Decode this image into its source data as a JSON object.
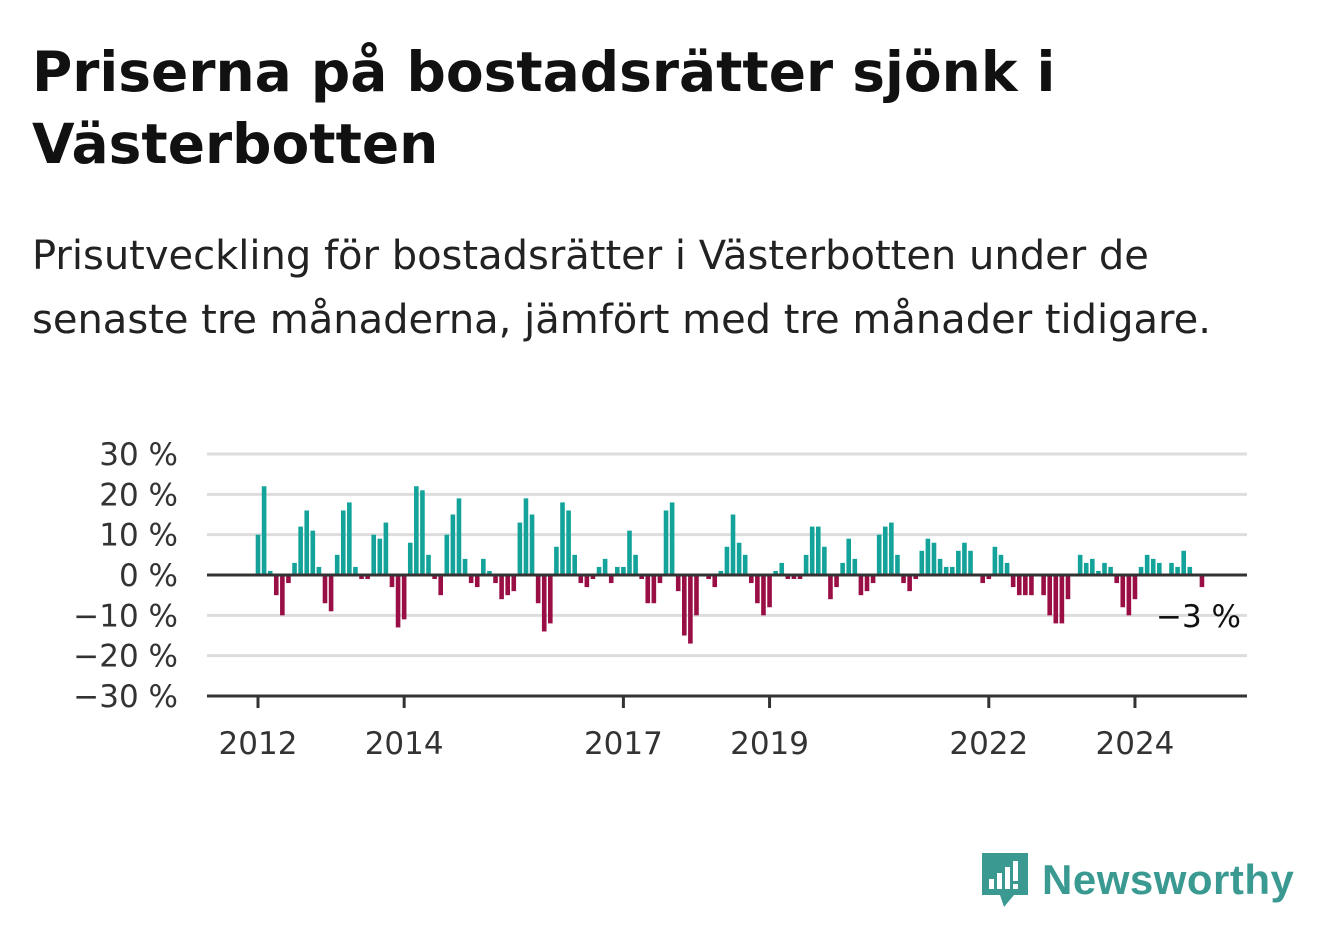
{
  "chart_data": {
    "type": "bar",
    "title": "Priserna på bostadsrätter sjönk i Västerbotten",
    "subtitle": "Prisutveckling för bostadsrätter i Västerbotten under de senaste tre månaderna, jämfört med tre månader tidigare.",
    "xlabel": "",
    "ylabel": "",
    "ylim": [
      -30,
      30
    ],
    "yticks": [
      30,
      20,
      10,
      0,
      -10,
      -20,
      -30
    ],
    "ytick_labels": [
      "30 %",
      "20 %",
      "10 %",
      "0 %",
      "−10 %",
      "−20 %",
      "−30 %"
    ],
    "xticks": [
      "2012",
      "2014",
      "2017",
      "2019",
      "2022",
      "2024"
    ],
    "grid": true,
    "start": "2012-01",
    "x_unit": "month",
    "colors": {
      "positive": "#14a39a",
      "negative": "#990e45",
      "grid": "#dddddd",
      "axis": "#333333"
    },
    "values": [
      10,
      22,
      1,
      -5,
      -10,
      -2,
      3,
      12,
      16,
      11,
      2,
      -7,
      -9,
      5,
      16,
      18,
      2,
      -1,
      -1,
      10,
      9,
      13,
      -3,
      -13,
      -11,
      8,
      22,
      21,
      5,
      -1,
      -5,
      10,
      15,
      19,
      4,
      -2,
      -3,
      4,
      1,
      -2,
      -6,
      -5,
      -4,
      13,
      19,
      15,
      -7,
      -14,
      -12,
      7,
      18,
      16,
      5,
      -2,
      -3,
      -1,
      2,
      4,
      -2,
      2,
      2,
      11,
      5,
      -1,
      -7,
      -7,
      -2,
      16,
      18,
      -4,
      -15,
      -17,
      -10,
      0,
      -1,
      -3,
      1,
      7,
      15,
      8,
      5,
      -2,
      -7,
      -10,
      -8,
      1,
      3,
      -1,
      -1,
      -1,
      5,
      12,
      12,
      7,
      -6,
      -3,
      3,
      9,
      4,
      -5,
      -4,
      -2,
      10,
      12,
      13,
      5,
      -2,
      -4,
      -1,
      6,
      9,
      8,
      4,
      2,
      2,
      6,
      8,
      6,
      0,
      -2,
      -1,
      7,
      5,
      3,
      -3,
      -5,
      -5,
      -5,
      0,
      -5,
      -10,
      -12,
      -12,
      -6,
      0,
      5,
      3,
      4,
      1,
      3,
      2,
      -2,
      -8,
      -10,
      -6,
      2,
      5,
      4,
      3,
      0,
      3,
      2,
      6,
      2,
      0,
      -3
    ],
    "annotation": "−3 %"
  },
  "brand": {
    "name": "Newsworthy",
    "color": "#3a9a92"
  }
}
